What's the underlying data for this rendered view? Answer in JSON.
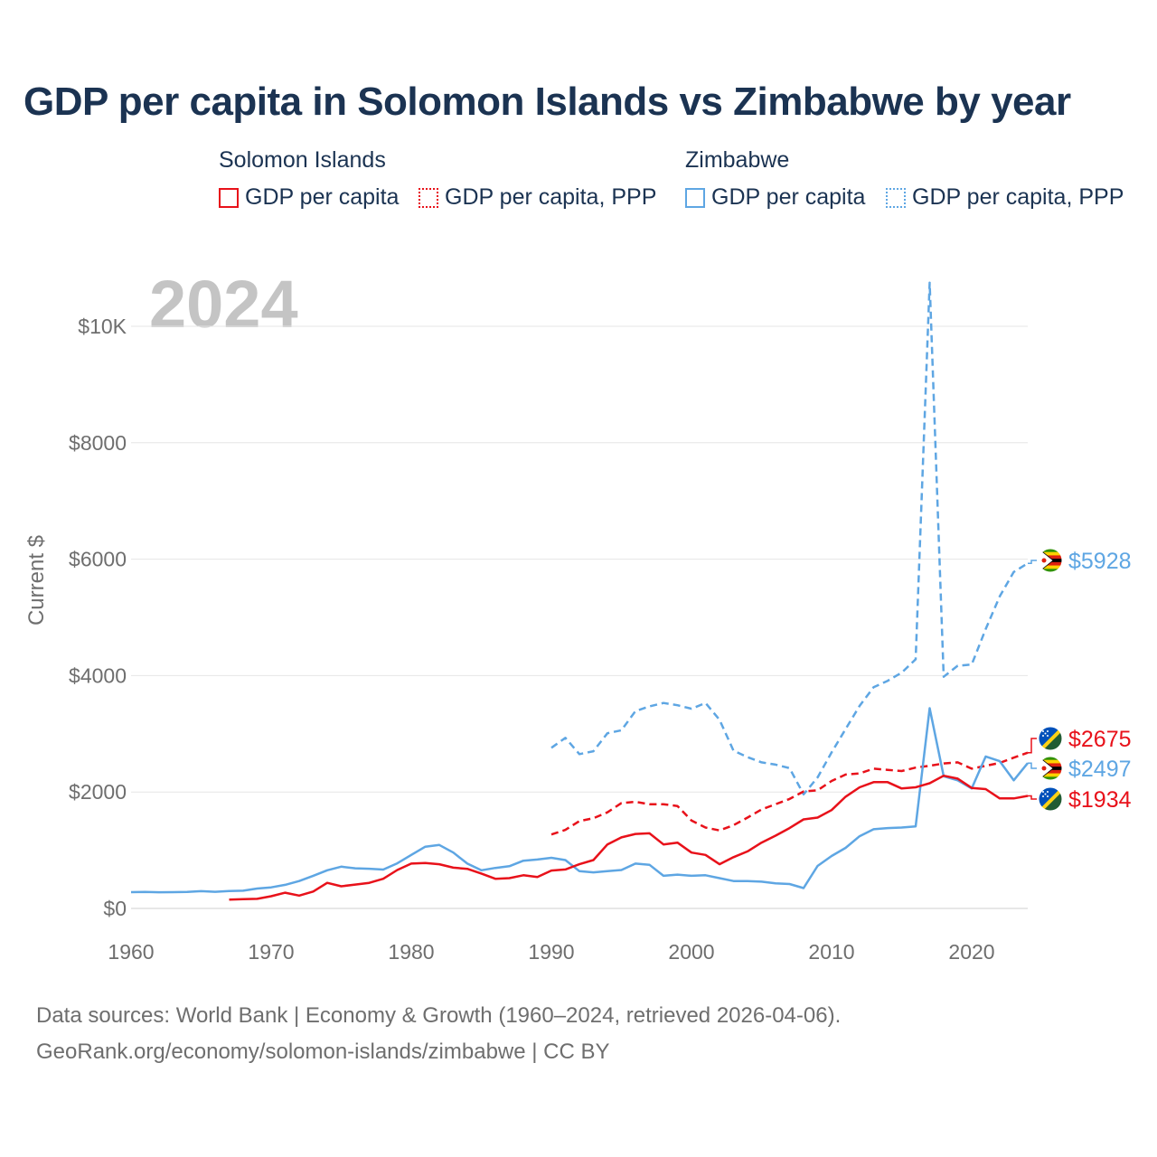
{
  "title": "GDP per capita in Solomon Islands vs Zimbabwe by year",
  "legend": {
    "groups": [
      {
        "country": "Solomon Islands",
        "items": [
          "GDP per capita",
          "GDP per capita, PPP"
        ]
      },
      {
        "country": "Zimbabwe",
        "items": [
          "GDP per capita",
          "GDP per capita, PPP"
        ]
      }
    ]
  },
  "year_watermark": "2024",
  "ylabel": "Current $",
  "sources": {
    "line1": "Data sources: World Bank | Economy & Growth (1960–2024, retrieved 2026-04-06).",
    "line2": "GeoRank.org/economy/solomon-islands/zimbabwe | CC BY"
  },
  "colors": {
    "solomon": "#e8111a",
    "zimbabwe": "#5ea6e3",
    "grid": "#e6e6e6",
    "axis_text": "#6e6e6e",
    "title": "#1b3352"
  },
  "chart_data": {
    "type": "line",
    "title": "GDP per capita in Solomon Islands vs Zimbabwe by year",
    "xlabel": "",
    "ylabel": "Current $",
    "xlim": [
      1960,
      2024
    ],
    "ylim": [
      0,
      10800
    ],
    "x_ticks": [
      1960,
      1970,
      1980,
      1990,
      2000,
      2010,
      2020
    ],
    "y_ticks": [
      {
        "value": 0,
        "label": "$0"
      },
      {
        "value": 2000,
        "label": "$2000"
      },
      {
        "value": 4000,
        "label": "$4000"
      },
      {
        "value": 6000,
        "label": "$6000"
      },
      {
        "value": 8000,
        "label": "$8000"
      },
      {
        "value": 10000,
        "label": "$10K"
      }
    ],
    "series": [
      {
        "name": "Zimbabwe GDP per capita, PPP",
        "country": "Zimbabwe",
        "style": "dashed",
        "color": "#5ea6e3",
        "points": [
          [
            1990,
            2760
          ],
          [
            1991,
            2930
          ],
          [
            1992,
            2650
          ],
          [
            1993,
            2700
          ],
          [
            1994,
            3010
          ],
          [
            1995,
            3060
          ],
          [
            1996,
            3390
          ],
          [
            1997,
            3470
          ],
          [
            1998,
            3530
          ],
          [
            1999,
            3490
          ],
          [
            2000,
            3430
          ],
          [
            2001,
            3530
          ],
          [
            2002,
            3240
          ],
          [
            2003,
            2710
          ],
          [
            2004,
            2600
          ],
          [
            2005,
            2510
          ],
          [
            2006,
            2470
          ],
          [
            2007,
            2410
          ],
          [
            2008,
            1960
          ],
          [
            2009,
            2250
          ],
          [
            2010,
            2680
          ],
          [
            2011,
            3080
          ],
          [
            2012,
            3480
          ],
          [
            2013,
            3800
          ],
          [
            2014,
            3910
          ],
          [
            2015,
            4050
          ],
          [
            2016,
            4280
          ],
          [
            2017,
            10750
          ],
          [
            2018,
            3980
          ],
          [
            2019,
            4170
          ],
          [
            2020,
            4190
          ],
          [
            2021,
            4800
          ],
          [
            2022,
            5360
          ],
          [
            2023,
            5780
          ],
          [
            2024,
            5928
          ]
        ],
        "end_label": "$5928"
      },
      {
        "name": "Solomon Islands GDP per capita, PPP",
        "country": "Solomon Islands",
        "style": "dashed",
        "color": "#e8111a",
        "points": [
          [
            1990,
            1270
          ],
          [
            1991,
            1350
          ],
          [
            1992,
            1500
          ],
          [
            1993,
            1550
          ],
          [
            1994,
            1650
          ],
          [
            1995,
            1810
          ],
          [
            1996,
            1830
          ],
          [
            1997,
            1790
          ],
          [
            1998,
            1790
          ],
          [
            1999,
            1760
          ],
          [
            2000,
            1510
          ],
          [
            2001,
            1390
          ],
          [
            2002,
            1340
          ],
          [
            2003,
            1430
          ],
          [
            2004,
            1560
          ],
          [
            2005,
            1700
          ],
          [
            2006,
            1790
          ],
          [
            2007,
            1880
          ],
          [
            2008,
            2010
          ],
          [
            2009,
            2030
          ],
          [
            2010,
            2190
          ],
          [
            2011,
            2300
          ],
          [
            2012,
            2320
          ],
          [
            2013,
            2400
          ],
          [
            2014,
            2380
          ],
          [
            2015,
            2360
          ],
          [
            2016,
            2420
          ],
          [
            2017,
            2450
          ],
          [
            2018,
            2490
          ],
          [
            2019,
            2510
          ],
          [
            2020,
            2400
          ],
          [
            2021,
            2450
          ],
          [
            2022,
            2500
          ],
          [
            2023,
            2590
          ],
          [
            2024,
            2675
          ]
        ],
        "end_label": "$2675"
      },
      {
        "name": "Zimbabwe GDP per capita",
        "country": "Zimbabwe",
        "style": "solid",
        "color": "#5ea6e3",
        "points": [
          [
            1960,
            280
          ],
          [
            1961,
            282
          ],
          [
            1962,
            278
          ],
          [
            1963,
            280
          ],
          [
            1964,
            282
          ],
          [
            1965,
            296
          ],
          [
            1966,
            285
          ],
          [
            1967,
            298
          ],
          [
            1968,
            305
          ],
          [
            1969,
            342
          ],
          [
            1970,
            362
          ],
          [
            1971,
            405
          ],
          [
            1972,
            470
          ],
          [
            1973,
            560
          ],
          [
            1974,
            655
          ],
          [
            1975,
            718
          ],
          [
            1976,
            690
          ],
          [
            1977,
            682
          ],
          [
            1978,
            668
          ],
          [
            1979,
            775
          ],
          [
            1980,
            920
          ],
          [
            1981,
            1060
          ],
          [
            1982,
            1090
          ],
          [
            1983,
            960
          ],
          [
            1984,
            770
          ],
          [
            1985,
            655
          ],
          [
            1986,
            695
          ],
          [
            1987,
            725
          ],
          [
            1988,
            820
          ],
          [
            1989,
            840
          ],
          [
            1990,
            870
          ],
          [
            1991,
            830
          ],
          [
            1992,
            640
          ],
          [
            1993,
            620
          ],
          [
            1994,
            640
          ],
          [
            1995,
            660
          ],
          [
            1996,
            770
          ],
          [
            1997,
            750
          ],
          [
            1998,
            560
          ],
          [
            1999,
            580
          ],
          [
            2000,
            560
          ],
          [
            2001,
            570
          ],
          [
            2002,
            520
          ],
          [
            2003,
            470
          ],
          [
            2004,
            470
          ],
          [
            2005,
            460
          ],
          [
            2006,
            430
          ],
          [
            2007,
            420
          ],
          [
            2008,
            350
          ],
          [
            2009,
            730
          ],
          [
            2010,
            900
          ],
          [
            2011,
            1040
          ],
          [
            2012,
            1240
          ],
          [
            2013,
            1360
          ],
          [
            2014,
            1380
          ],
          [
            2015,
            1390
          ],
          [
            2016,
            1410
          ],
          [
            2017,
            3440
          ],
          [
            2018,
            2270
          ],
          [
            2019,
            2200
          ],
          [
            2020,
            2060
          ],
          [
            2021,
            2610
          ],
          [
            2022,
            2530
          ],
          [
            2023,
            2200
          ],
          [
            2024,
            2497
          ]
        ],
        "end_label": "$2497"
      },
      {
        "name": "Solomon Islands GDP per capita",
        "country": "Solomon Islands",
        "style": "solid",
        "color": "#e8111a",
        "points": [
          [
            1967,
            150
          ],
          [
            1968,
            160
          ],
          [
            1969,
            165
          ],
          [
            1970,
            210
          ],
          [
            1971,
            270
          ],
          [
            1972,
            220
          ],
          [
            1973,
            290
          ],
          [
            1974,
            440
          ],
          [
            1975,
            380
          ],
          [
            1976,
            410
          ],
          [
            1977,
            440
          ],
          [
            1978,
            510
          ],
          [
            1979,
            660
          ],
          [
            1980,
            770
          ],
          [
            1981,
            780
          ],
          [
            1982,
            760
          ],
          [
            1983,
            700
          ],
          [
            1984,
            680
          ],
          [
            1985,
            600
          ],
          [
            1986,
            510
          ],
          [
            1987,
            520
          ],
          [
            1988,
            570
          ],
          [
            1989,
            540
          ],
          [
            1990,
            650
          ],
          [
            1991,
            670
          ],
          [
            1992,
            760
          ],
          [
            1993,
            830
          ],
          [
            1994,
            1100
          ],
          [
            1995,
            1220
          ],
          [
            1996,
            1280
          ],
          [
            1997,
            1290
          ],
          [
            1998,
            1100
          ],
          [
            1999,
            1130
          ],
          [
            2000,
            960
          ],
          [
            2001,
            920
          ],
          [
            2002,
            760
          ],
          [
            2003,
            880
          ],
          [
            2004,
            980
          ],
          [
            2005,
            1130
          ],
          [
            2006,
            1250
          ],
          [
            2007,
            1380
          ],
          [
            2008,
            1530
          ],
          [
            2009,
            1560
          ],
          [
            2010,
            1690
          ],
          [
            2011,
            1920
          ],
          [
            2012,
            2080
          ],
          [
            2013,
            2170
          ],
          [
            2014,
            2170
          ],
          [
            2015,
            2060
          ],
          [
            2016,
            2080
          ],
          [
            2017,
            2150
          ],
          [
            2018,
            2280
          ],
          [
            2019,
            2230
          ],
          [
            2020,
            2070
          ],
          [
            2021,
            2050
          ],
          [
            2022,
            1890
          ],
          [
            2023,
            1890
          ],
          [
            2024,
            1934
          ]
        ],
        "end_label": "$1934"
      }
    ]
  }
}
